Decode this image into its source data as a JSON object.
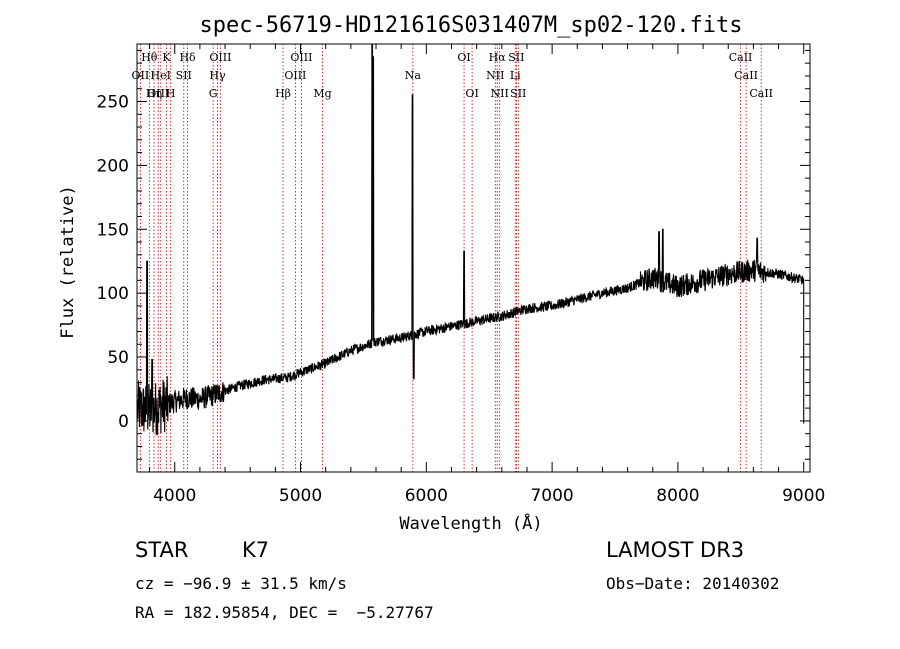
{
  "chart_data": {
    "type": "line",
    "title": "spec-56719-HD121616S031407M_sp02-120.fits",
    "xlabel": "Wavelength (Å)",
    "ylabel": "Flux (relative)",
    "xlim": [
      3700,
      9050
    ],
    "ylim": [
      -40,
      295
    ],
    "xticks": [
      4000,
      5000,
      6000,
      7000,
      8000,
      9000
    ],
    "yticks": [
      0,
      50,
      100,
      150,
      200,
      250
    ],
    "spectrum_anchors": [
      [
        3700,
        10
      ],
      [
        3800,
        8
      ],
      [
        3900,
        12
      ],
      [
        4000,
        15
      ],
      [
        4100,
        18
      ],
      [
        4200,
        17
      ],
      [
        4300,
        20
      ],
      [
        4500,
        27
      ],
      [
        4700,
        32
      ],
      [
        4900,
        34
      ],
      [
        5000,
        38
      ],
      [
        5200,
        45
      ],
      [
        5400,
        55
      ],
      [
        5600,
        62
      ],
      [
        5800,
        65
      ],
      [
        6000,
        70
      ],
      [
        6200,
        74
      ],
      [
        6400,
        78
      ],
      [
        6600,
        82
      ],
      [
        6800,
        88
      ],
      [
        7000,
        90
      ],
      [
        7200,
        95
      ],
      [
        7400,
        100
      ],
      [
        7600,
        104
      ],
      [
        7800,
        112
      ],
      [
        8000,
        105
      ],
      [
        8200,
        110
      ],
      [
        8400,
        115
      ],
      [
        8600,
        118
      ],
      [
        8800,
        115
      ],
      [
        9000,
        110
      ]
    ],
    "spectrum_spikes": [
      [
        3780,
        125
      ],
      [
        3820,
        48
      ],
      [
        5570,
        295
      ],
      [
        5578,
        285
      ],
      [
        5890,
        255
      ],
      [
        5900,
        33
      ],
      [
        6300,
        133
      ],
      [
        7850,
        148
      ],
      [
        7880,
        150
      ],
      [
        8630,
        143
      ]
    ],
    "line_markers": [
      {
        "label": "Hθ",
        "wavelength": 3798,
        "row": 0
      },
      {
        "label": "K",
        "wavelength": 3934,
        "row": 0
      },
      {
        "label": "Hδ",
        "wavelength": 4102,
        "row": 0
      },
      {
        "label": "OIII",
        "wavelength": 4363,
        "row": 0
      },
      {
        "label": "OIII",
        "wavelength": 5007,
        "row": 0
      },
      {
        "label": "OI",
        "wavelength": 6300,
        "row": 0
      },
      {
        "label": "Hα",
        "wavelength": 6563,
        "row": 0
      },
      {
        "label": "SII",
        "wavelength": 6716,
        "row": 0
      },
      {
        "label": "CaII",
        "wavelength": 8498,
        "row": 0
      },
      {
        "label": "OII",
        "wavelength": 3727,
        "row": 1
      },
      {
        "label": "HeI",
        "wavelength": 3889,
        "row": 1
      },
      {
        "label": "SII",
        "wavelength": 4072,
        "row": 1
      },
      {
        "label": "Hγ",
        "wavelength": 4340,
        "row": 1
      },
      {
        "label": "OIII",
        "wavelength": 4959,
        "row": 1
      },
      {
        "label": "Na",
        "wavelength": 5893,
        "row": 1
      },
      {
        "label": "NII",
        "wavelength": 6548,
        "row": 1
      },
      {
        "label": "Li",
        "wavelength": 6707,
        "row": 1
      },
      {
        "label": "CaII",
        "wavelength": 8542,
        "row": 1
      },
      {
        "label": "OIII",
        "wavelength": 3869,
        "row": 2
      },
      {
        "label": "Hη",
        "wavelength": 3835,
        "row": 2
      },
      {
        "label": "H",
        "wavelength": 3968,
        "row": 2
      },
      {
        "label": "G",
        "wavelength": 4305,
        "row": 2
      },
      {
        "label": "Hβ",
        "wavelength": 4861,
        "row": 2
      },
      {
        "label": "Mg",
        "wavelength": 5175,
        "row": 2
      },
      {
        "label": "OI",
        "wavelength": 6364,
        "row": 2
      },
      {
        "label": "NII",
        "wavelength": 6583,
        "row": 2
      },
      {
        "label": "SII",
        "wavelength": 6731,
        "row": 2
      },
      {
        "label": "CaII",
        "wavelength": 8662,
        "row": 2
      }
    ]
  },
  "info": {
    "class_label": "STAR",
    "subclass": "K7",
    "survey": "LAMOST DR3",
    "cz": "cz = −96.9 ± 31.5 km/s",
    "obs_date": "Obs−Date: 20140302",
    "coords": "RA = 182.95854, DEC =  −5.27767"
  },
  "colors": {
    "axis": "#000000",
    "spectrum": "#000000",
    "marker": "#c00000"
  }
}
